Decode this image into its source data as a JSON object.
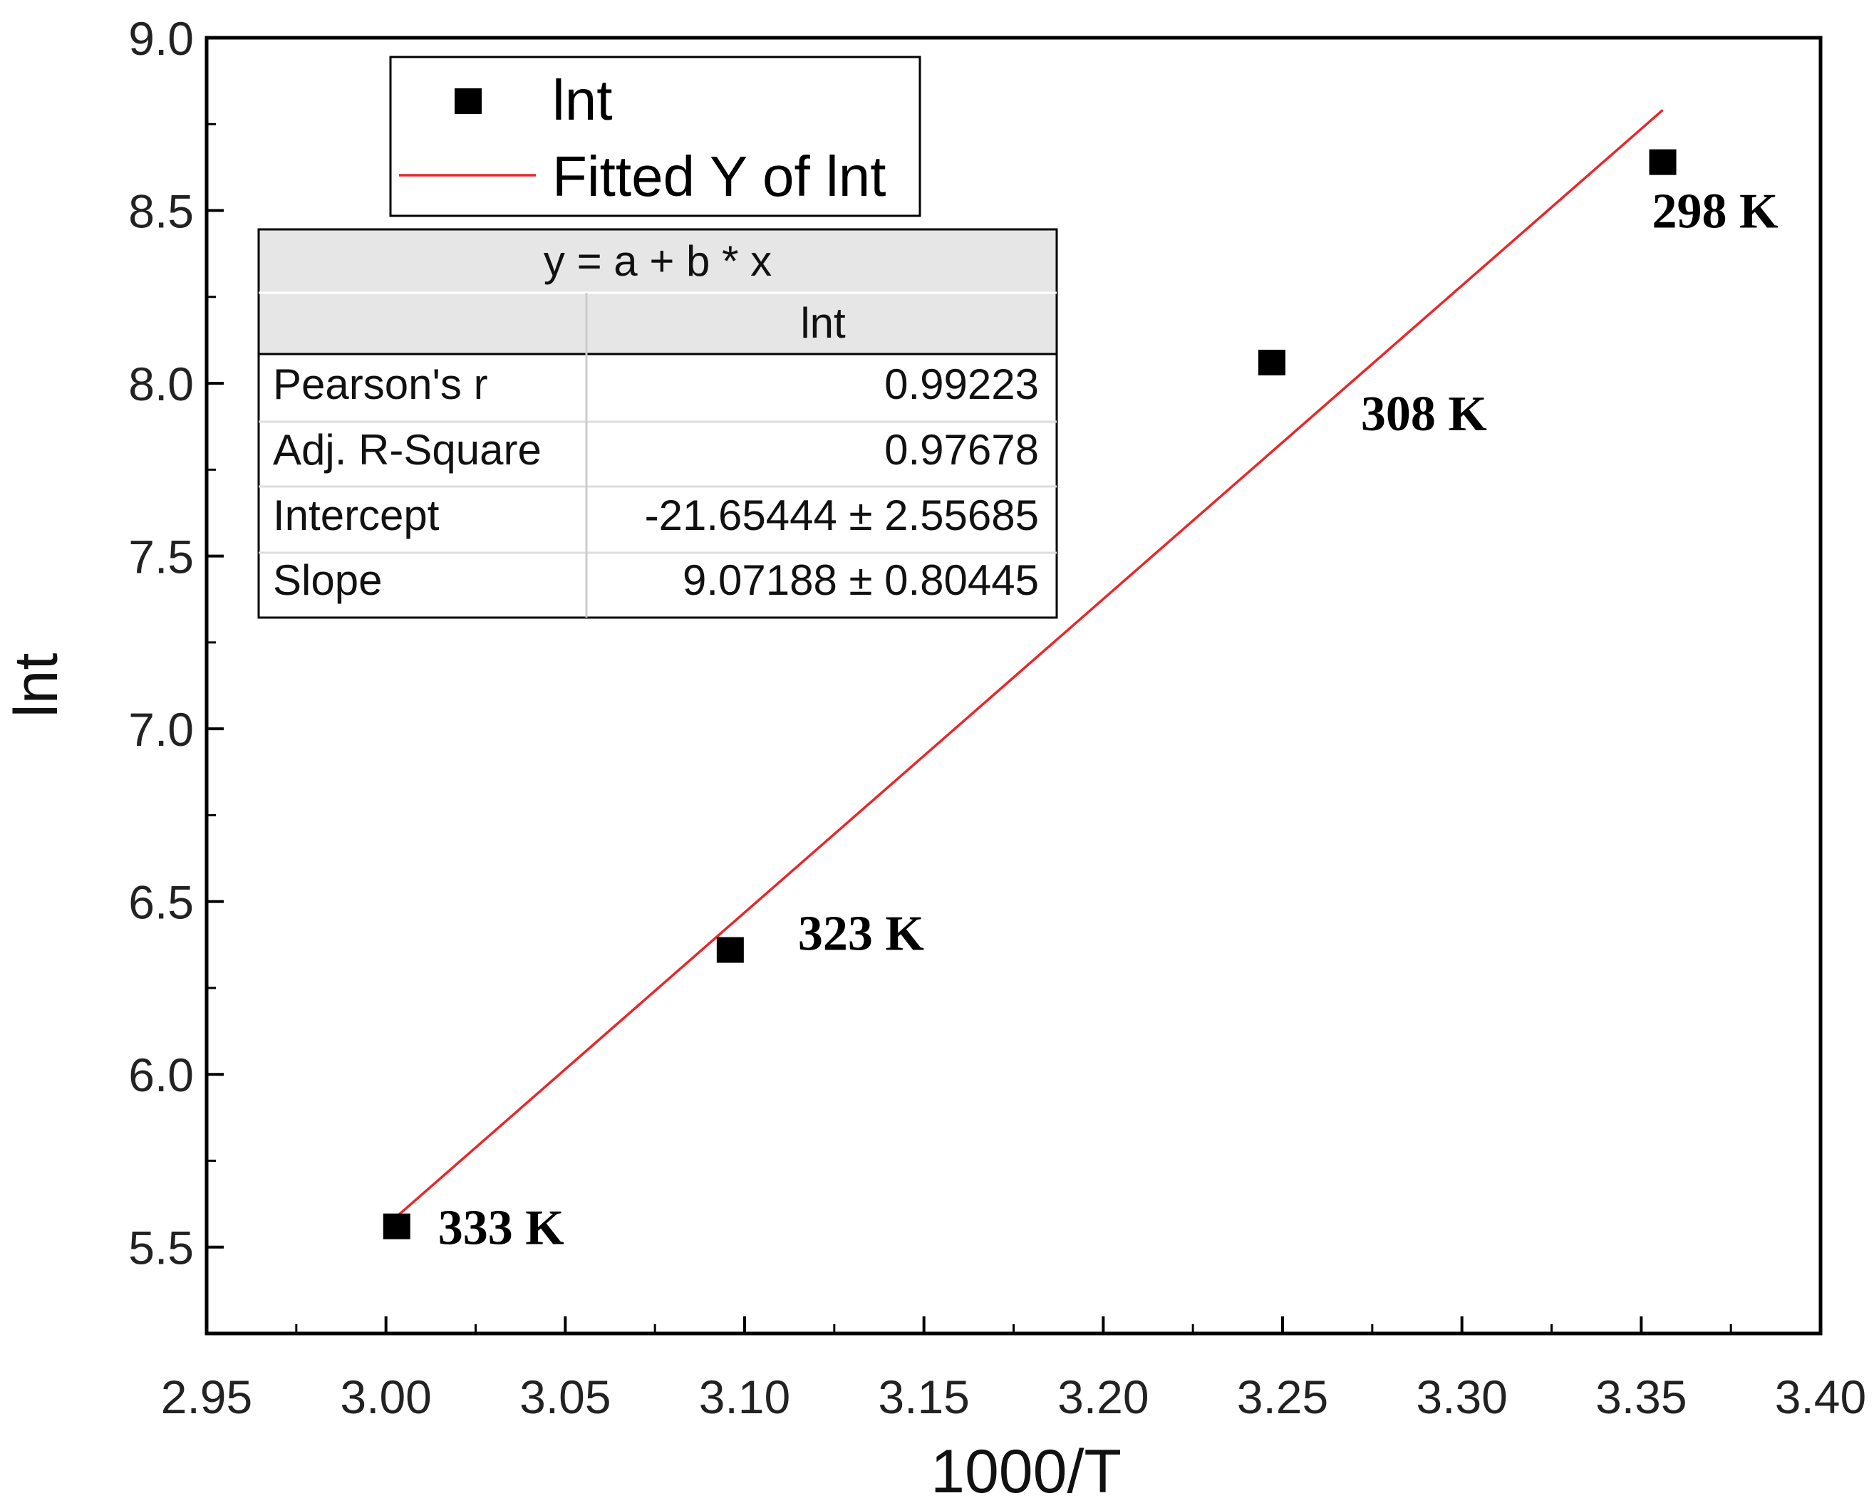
{
  "chart_data": {
    "type": "scatter",
    "title": "",
    "xlabel": "1000/T",
    "ylabel": "lnt",
    "xlim": [
      2.95,
      3.4
    ],
    "ylim": [
      5.25,
      9.0
    ],
    "x_ticks": [
      2.95,
      3.0,
      3.05,
      3.1,
      3.15,
      3.2,
      3.25,
      3.3,
      3.35,
      3.4
    ],
    "x_tick_labels": [
      "2.95",
      "3.00",
      "3.05",
      "3.10",
      "3.15",
      "3.20",
      "3.25",
      "3.30",
      "3.35",
      "3.40"
    ],
    "y_ticks": [
      5.5,
      6.0,
      6.5,
      7.0,
      7.5,
      8.0,
      8.5,
      9.0
    ],
    "y_tick_labels": [
      "5.5",
      "6.0",
      "6.5",
      "7.0",
      "7.5",
      "8.0",
      "8.5",
      "9.0"
    ],
    "grid": false,
    "series": [
      {
        "name": "lnt",
        "kind": "scatter",
        "marker": "square",
        "color": "#000000",
        "points": [
          {
            "x": 3.003,
            "y": 5.56,
            "label": "333 K"
          },
          {
            "x": 3.096,
            "y": 6.36,
            "label": "323 K"
          },
          {
            "x": 3.247,
            "y": 8.06,
            "label": "308 K"
          },
          {
            "x": 3.356,
            "y": 8.64,
            "label": "298 K"
          }
        ]
      },
      {
        "name": "Fitted Y of lnt",
        "kind": "line",
        "color": "#e8272a",
        "x_range": [
          3.003,
          3.356
        ],
        "intercept": -21.65444,
        "slope": 9.07188
      }
    ],
    "legend": {
      "position": "top-left",
      "entries": [
        {
          "label": "lnt",
          "marker": "square",
          "color": "#000000"
        },
        {
          "label": "Fitted Y of lnt",
          "marker": "line",
          "color": "#e8272a"
        }
      ]
    },
    "fit_table": {
      "equation": "y = a + b * x",
      "column_header": "lnt",
      "rows": [
        {
          "label": "Pearson's r",
          "value": "0.99223"
        },
        {
          "label": "Adj. R-Square",
          "value": "0.97678"
        },
        {
          "label": "Intercept",
          "value": "-21.65444 ± 2.55685"
        },
        {
          "label": "Slope",
          "value": "9.07188 ± 0.80445"
        }
      ]
    }
  }
}
